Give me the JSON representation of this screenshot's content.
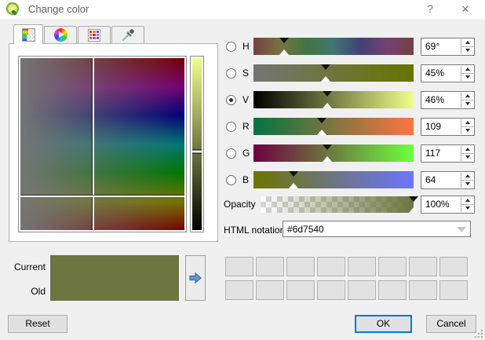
{
  "window": {
    "title": "Change color",
    "help_label": "?",
    "close_label": "✕"
  },
  "tabs": [
    {
      "id": "color-box",
      "active": true
    },
    {
      "id": "color-wheel",
      "active": false
    },
    {
      "id": "swatches",
      "active": false
    },
    {
      "id": "sampler",
      "active": false
    }
  ],
  "picker": {
    "hue_gradient": "linear-gradient(to bottom,#750000 0%,#750075 16.7%,#000075 33.3%,#007575 50%,#007500 66.7%,#757500 83.3%,#750000 100%)",
    "gray_overlay": "linear-gradient(to right, rgba(117,117,117,1), rgba(117,117,117,0))",
    "cross_x_percent": 44.3,
    "cross_y_percent": 80.5,
    "valuebar_gradient": "linear-gradient(to bottom,#eeff8c,#000000)",
    "valuebar_marker_percent": 54.2
  },
  "sliders": [
    {
      "label": "H",
      "value": "69°",
      "percent": 19.2,
      "selected": false,
      "gradient": "linear-gradient(to right,#754141 0%,#757541 16.7%,#417541 33.3%,#417575 50%,#414175 66.7%,#754175 83.3%,#754141 100%)"
    },
    {
      "label": "S",
      "value": "45%",
      "percent": 45,
      "selected": false,
      "gradient": "linear-gradient(to right,#757575,#647500)"
    },
    {
      "label": "V",
      "value": "46%",
      "percent": 46,
      "selected": true,
      "gradient": "linear-gradient(to right,#000000,#eeff8c)"
    },
    {
      "label": "R",
      "value": "109",
      "percent": 42.7,
      "selected": false,
      "gradient": "linear-gradient(to right,#007540,#ff7540)"
    },
    {
      "label": "G",
      "value": "117",
      "percent": 45.9,
      "selected": false,
      "gradient": "linear-gradient(to right,#6d0040,#6dff40)"
    },
    {
      "label": "B",
      "value": "64",
      "percent": 25.1,
      "selected": false,
      "gradient": "linear-gradient(to right,#6d7500,#6d75ff)"
    }
  ],
  "opacity": {
    "label": "Opacity",
    "value": "100%",
    "percent": 100,
    "gradient": "linear-gradient(to right, rgba(109,117,64,0), rgba(109,117,64,1))"
  },
  "html_notation": {
    "label": "HTML notation",
    "value": "#6d7540"
  },
  "current_old": {
    "current_label": "Current",
    "old_label": "Old",
    "current_color": "#6d7540",
    "old_color": "#6d7540"
  },
  "swatches": {
    "count": 16
  },
  "buttons": {
    "reset": "Reset",
    "ok": "OK",
    "cancel": "Cancel"
  },
  "colors": {
    "accent_blue": "#0078d7",
    "dialog_bg": "#f0f0f0",
    "selected_color": "#6d7540"
  }
}
